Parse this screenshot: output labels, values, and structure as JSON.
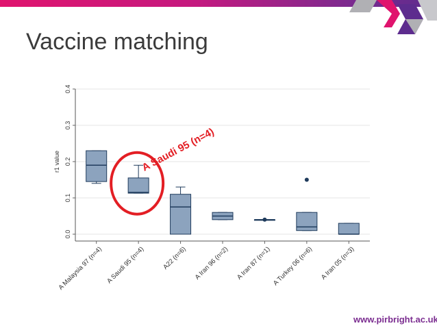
{
  "slide": {
    "title": "Vaccine matching",
    "footer_url": "www.pirbright.ac.uk",
    "annotation": "A Saudi 95 (n=4)"
  },
  "colors": {
    "box_fill": "#8ca3be",
    "box_stroke": "#1f3b5c",
    "highlight": "#e31e24",
    "accent_pink": "#e0146e",
    "accent_purple": "#7c2a8f"
  },
  "chart_data": {
    "type": "box",
    "title": "",
    "xlabel": "",
    "ylabel": "r1 value",
    "ylim": [
      0,
      0.4
    ],
    "yticks": [
      "0.0",
      "0.1",
      "0.2",
      "0.3",
      "0.4"
    ],
    "grid": true,
    "categories": [
      "A Malaysia 97 (n=4)",
      "A Saudi 95 (n=4)",
      "A22 (n=6)",
      "A Iran 96 (n=2)",
      "A Iran 87 (n=1)",
      "A Turkey 06 (n=6)",
      "A Iran 05 (n=3)"
    ],
    "boxes": [
      {
        "min": 0.14,
        "q1": 0.145,
        "median": 0.19,
        "q3": 0.23,
        "max": 0.23,
        "outliers": []
      },
      {
        "min": 0.113,
        "q1": 0.113,
        "median": 0.115,
        "q3": 0.155,
        "max": 0.19,
        "outliers": []
      },
      {
        "min": 0.0,
        "q1": 0.0,
        "median": 0.075,
        "q3": 0.11,
        "max": 0.13,
        "outliers": []
      },
      {
        "min": 0.04,
        "q1": 0.04,
        "median": 0.05,
        "q3": 0.06,
        "max": 0.06,
        "outliers": []
      },
      {
        "min": 0.04,
        "q1": 0.04,
        "median": 0.04,
        "q3": 0.04,
        "max": 0.04,
        "outliers": [
          0.04
        ]
      },
      {
        "min": 0.01,
        "q1": 0.01,
        "median": 0.02,
        "q3": 0.06,
        "max": 0.06,
        "outliers": [
          0.15
        ]
      },
      {
        "min": 0.0,
        "q1": 0.0,
        "median": 0.0,
        "q3": 0.03,
        "max": 0.03,
        "outliers": []
      }
    ],
    "highlighted_category": "A Saudi 95 (n=4)"
  }
}
